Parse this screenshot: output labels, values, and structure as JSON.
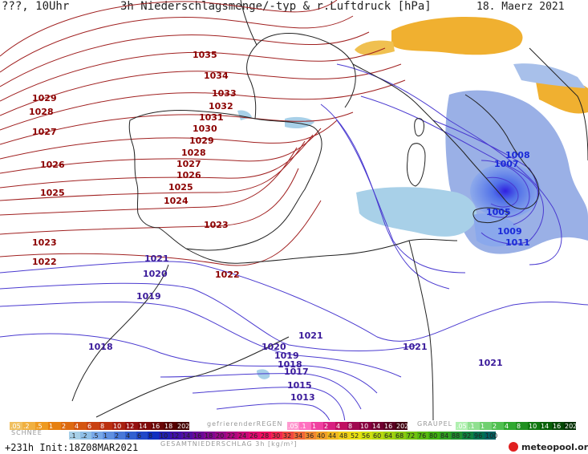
{
  "header": {
    "left": "???, 10Uhr",
    "title": "3h Niederschlagsmenge/-typ & r.Luftdruck [hPa]",
    "date": "18. Maerz 2021"
  },
  "isobars": [
    {
      "label": "1035",
      "cls": "hi"
    },
    {
      "label": "1034",
      "cls": "hi"
    },
    {
      "label": "1033",
      "cls": "hi"
    },
    {
      "label": "1032",
      "cls": "hi"
    },
    {
      "label": "1031",
      "cls": "hi"
    },
    {
      "label": "1030",
      "cls": "hi"
    },
    {
      "label": "1029",
      "cls": "hi"
    },
    {
      "label": "1028",
      "cls": "hi"
    },
    {
      "label": "1027",
      "cls": "hi"
    },
    {
      "label": "1026",
      "cls": "hi"
    },
    {
      "label": "1025",
      "cls": "hi"
    },
    {
      "label": "1024",
      "cls": "hi"
    },
    {
      "label": "1023",
      "cls": "hi"
    },
    {
      "label": "1022",
      "cls": "hi"
    },
    {
      "label": "1029",
      "cls": "hi"
    },
    {
      "label": "1028",
      "cls": "hi"
    },
    {
      "label": "1027",
      "cls": "hi"
    },
    {
      "label": "1026",
      "cls": "hi"
    },
    {
      "label": "1025",
      "cls": "hi"
    },
    {
      "label": "1023",
      "cls": "hi"
    },
    {
      "label": "1022",
      "cls": "hi"
    },
    {
      "label": "1021",
      "cls": "lo"
    },
    {
      "label": "1020",
      "cls": "lo"
    },
    {
      "label": "1019",
      "cls": "lo"
    },
    {
      "label": "1018",
      "cls": "lo"
    },
    {
      "label": "1021",
      "cls": "lo"
    },
    {
      "label": "1020",
      "cls": "lo"
    },
    {
      "label": "1019",
      "cls": "lo"
    },
    {
      "label": "1018",
      "cls": "lo"
    },
    {
      "label": "1017",
      "cls": "lo"
    },
    {
      "label": "1015",
      "cls": "lo"
    },
    {
      "label": "1013",
      "cls": "lo"
    },
    {
      "label": "1021",
      "cls": "lo"
    },
    {
      "label": "1021",
      "cls": "lo"
    },
    {
      "label": "1008",
      "cls": "blue"
    },
    {
      "label": "1007",
      "cls": "blue"
    },
    {
      "label": "1005",
      "cls": "blue"
    },
    {
      "label": "1009",
      "cls": "blue"
    },
    {
      "label": "1011",
      "cls": "blue"
    }
  ],
  "legend": {
    "snow_label": "SCHNEE",
    "snow_top": [
      ".05",
      ".2",
      ".5",
      "1",
      "2",
      "4",
      "6",
      "8",
      "10",
      "12",
      "14",
      "16",
      "18",
      "2025+"
    ],
    "snow_bottom": [
      ".1",
      ".2",
      ".5",
      "1",
      "2",
      "4",
      "6",
      "8",
      "10",
      "12",
      "14",
      "16",
      "18",
      "20",
      "22",
      "24",
      "26",
      "28",
      "30",
      "32",
      "34",
      "36",
      "40",
      "44",
      "48",
      "52",
      "56",
      "60",
      "64",
      "68",
      "72",
      "76",
      "80",
      "84",
      "88",
      "92",
      "96",
      "100"
    ],
    "freezing_label": "gefrierenderREGEN",
    "freezing": [
      ".05",
      ".1",
      "1",
      "2",
      "4",
      "8",
      "10",
      "14",
      "16",
      "2025+"
    ],
    "graupel_label": "GRAUPEL",
    "graupel": [
      ".05",
      ".1",
      "1",
      "2",
      "4",
      "8",
      "10",
      "14",
      "16",
      "2025+"
    ],
    "total_caption": "GESAMTNIEDERSCHLAG 3h [kg/m²]",
    "colors": {
      "snow": [
        "#f0c060",
        "#f0b040",
        "#ee9a20",
        "#e68010",
        "#dd6a10",
        "#d45510",
        "#c94010",
        "#bb3010",
        "#a82010",
        "#941010",
        "#800a0a",
        "#6a0505",
        "#550000",
        "#440000"
      ],
      "freezing": [
        "#ff9ad0",
        "#ff70c0",
        "#f040a0",
        "#d82080",
        "#c01060",
        "#a00850",
        "#880040",
        "#700030",
        "#580020",
        "#400010"
      ],
      "graupel": [
        "#b0f0b0",
        "#90e090",
        "#70d070",
        "#50c050",
        "#30a830",
        "#209020",
        "#107810",
        "#086008",
        "#044804",
        "#023002"
      ],
      "total": [
        "#a8d0e8",
        "#90c0e8",
        "#78a8e8",
        "#6090e0",
        "#4878d8",
        "#3060d0",
        "#2048c8",
        "#1030c0",
        "#2020b0",
        "#4010a8",
        "#5010a0",
        "#6a0898",
        "#800890",
        "#980888",
        "#b00880",
        "#c80878",
        "#e00870",
        "#f01060",
        "#f02850",
        "#f04840",
        "#f06838",
        "#f08830",
        "#f0a028",
        "#f0b820",
        "#f0d018",
        "#e8e010",
        "#d0e010",
        "#b8d810",
        "#a0d010",
        "#88c810",
        "#70c010",
        "#58b810",
        "#40b010",
        "#30a020",
        "#209030",
        "#108040",
        "#007050",
        "#006060"
      ]
    }
  },
  "footer": {
    "init": "+231h Init:18Z08MAR2021",
    "brand": "meteopool.org"
  }
}
